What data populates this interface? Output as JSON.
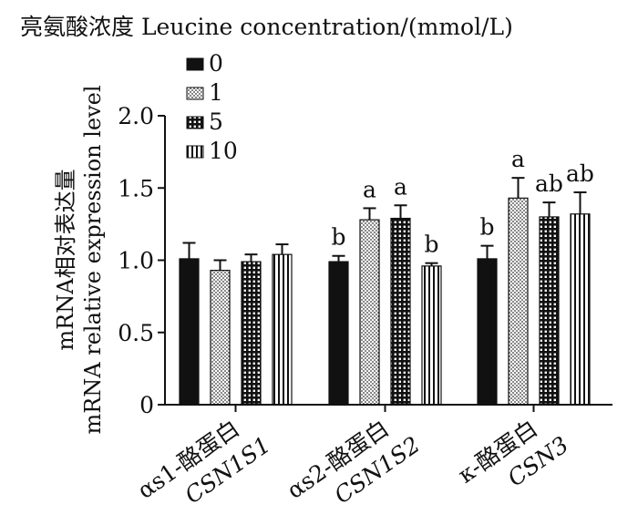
{
  "chart_data": {
    "type": "bar",
    "title": "亮氨酸浓度 Leucine concentration/(mmol/L)",
    "ylabel_cn": "mRNA相对表达量",
    "ylabel_en": "mRNA relative expression level",
    "xlabel": "",
    "ylim": [
      0,
      2.0
    ],
    "yticks": [
      "0",
      "0.5",
      "1.0",
      "1.5",
      "2.0"
    ],
    "legend_position": "top-left",
    "categories": [
      {
        "line1": "αs1-酪蛋白",
        "line2": "CSN1S1"
      },
      {
        "line1": "αs2-酪蛋白",
        "line2": "CSN1S2"
      },
      {
        "line1": "κ-酪蛋白",
        "line2": "CSN3"
      }
    ],
    "series": [
      {
        "name": "0",
        "pattern": "solid",
        "values": [
          1.01,
          0.99,
          1.01
        ],
        "errors": [
          0.11,
          0.04,
          0.09
        ],
        "letters": [
          "",
          "b",
          "b"
        ]
      },
      {
        "name": "1",
        "pattern": "dots",
        "values": [
          0.93,
          1.28,
          1.43
        ],
        "errors": [
          0.07,
          0.08,
          0.14
        ],
        "letters": [
          "",
          "a",
          "a"
        ]
      },
      {
        "name": "5",
        "pattern": "grid",
        "values": [
          0.99,
          1.29,
          1.3
        ],
        "errors": [
          0.05,
          0.09,
          0.1
        ],
        "letters": [
          "",
          "a",
          "ab"
        ]
      },
      {
        "name": "10",
        "pattern": "vlines",
        "values": [
          1.04,
          0.96,
          1.32
        ],
        "errors": [
          0.07,
          0.02,
          0.15
        ],
        "letters": [
          "",
          "b",
          "ab"
        ]
      }
    ],
    "colors": {
      "bar_fill": "#111111",
      "background": "#ffffff"
    }
  }
}
